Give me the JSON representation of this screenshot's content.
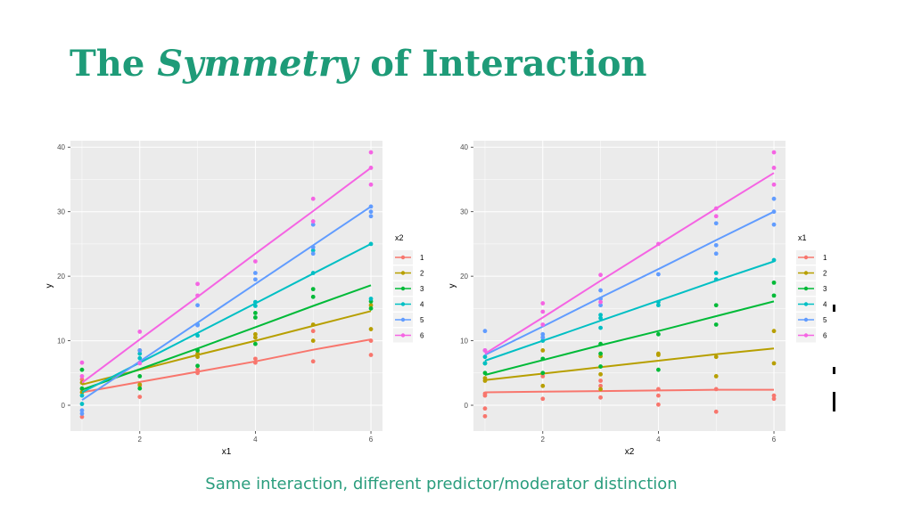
{
  "slide": {
    "title_part1": "The",
    "title_emph": "Symmetry",
    "title_part2": "of Interaction",
    "caption": "Same interaction, different predictor/moderator distinction"
  },
  "colors": {
    "title": "#1e9b78",
    "caption": "#2a9d7d",
    "panel_bg": "#ebebeb",
    "grid": "#ffffff",
    "series": [
      "#f8766d",
      "#b79f00",
      "#00ba38",
      "#00bfc4",
      "#619cff",
      "#f564e3"
    ]
  },
  "chart_data": [
    {
      "type": "scatter",
      "xlabel": "x1",
      "ylabel": "y",
      "xlim": [
        0.8,
        6.2
      ],
      "ylim": [
        -4,
        41
      ],
      "xticks": [
        2,
        4,
        6
      ],
      "yticks": [
        0,
        10,
        20,
        30,
        40
      ],
      "grid": true,
      "legend_title": "x2",
      "legend_position": "right",
      "x": [
        1,
        2,
        3,
        4,
        5,
        6
      ],
      "series": [
        {
          "name": "1",
          "fit": [
            2.0,
            3.6,
            5.2,
            6.8,
            8.6,
            10.2
          ],
          "points": [
            [
              1,
              2.5
            ],
            [
              1,
              -1.8
            ],
            [
              1,
              4.0
            ],
            [
              2,
              1.3
            ],
            [
              2,
              3.0
            ],
            [
              3,
              5.0
            ],
            [
              3,
              5.5
            ],
            [
              4,
              7.2
            ],
            [
              4,
              6.6
            ],
            [
              5,
              11.5
            ],
            [
              5,
              6.8
            ],
            [
              6,
              10.0
            ],
            [
              6,
              7.8
            ]
          ]
        },
        {
          "name": "2",
          "fit": [
            3.2,
            5.5,
            7.8,
            10.0,
            12.3,
            14.6
          ],
          "points": [
            [
              1,
              3.5
            ],
            [
              1,
              2.0
            ],
            [
              2,
              8.5
            ],
            [
              2,
              3.2
            ],
            [
              3,
              7.5
            ],
            [
              3,
              8.0
            ],
            [
              4,
              10.5
            ],
            [
              4,
              11.0
            ],
            [
              5,
              12.5
            ],
            [
              5,
              10.0
            ],
            [
              6,
              15.5
            ],
            [
              6,
              11.8
            ]
          ]
        },
        {
          "name": "3",
          "fit": [
            2.4,
            5.6,
            8.8,
            12.1,
            15.4,
            18.6
          ],
          "points": [
            [
              1,
              5.5
            ],
            [
              1,
              2.6
            ],
            [
              2,
              4.5
            ],
            [
              2,
              2.6
            ],
            [
              3,
              6.1
            ],
            [
              3,
              8.5
            ],
            [
              4,
              13.6
            ],
            [
              4,
              14.3
            ],
            [
              4,
              9.5
            ],
            [
              5,
              16.8
            ],
            [
              5,
              18.0
            ],
            [
              6,
              16.1
            ],
            [
              6,
              15.0
            ]
          ]
        },
        {
          "name": "4",
          "fit": [
            2.0,
            6.6,
            11.2,
            15.8,
            20.4,
            25.0
          ],
          "points": [
            [
              1,
              0.2
            ],
            [
              1,
              1.5
            ],
            [
              2,
              8.0
            ],
            [
              2,
              7.3
            ],
            [
              3,
              10.8
            ],
            [
              3,
              12.5
            ],
            [
              4,
              15.4
            ],
            [
              4,
              16.0
            ],
            [
              5,
              24.0
            ],
            [
              5,
              20.5
            ],
            [
              6,
              25.0
            ],
            [
              6,
              16.5
            ]
          ]
        },
        {
          "name": "5",
          "fit": [
            0.8,
            6.8,
            12.8,
            18.8,
            24.8,
            30.8
          ],
          "points": [
            [
              1,
              -0.8
            ],
            [
              1,
              -1.3
            ],
            [
              2,
              6.6
            ],
            [
              2,
              8.5
            ],
            [
              3,
              15.5
            ],
            [
              3,
              12.4
            ],
            [
              4,
              19.5
            ],
            [
              4,
              20.5
            ],
            [
              5,
              28.0
            ],
            [
              5,
              24.5
            ],
            [
              5,
              23.5
            ],
            [
              6,
              29.3
            ],
            [
              6,
              30.8
            ],
            [
              6,
              30.0
            ]
          ]
        },
        {
          "name": "6",
          "fit": [
            3.5,
            10.2,
            16.8,
            23.5,
            30.1,
            36.8
          ],
          "points": [
            [
              1,
              6.6
            ],
            [
              1,
              4.5
            ],
            [
              2,
              11.4
            ],
            [
              2,
              6.5
            ],
            [
              3,
              18.8
            ],
            [
              3,
              17.0
            ],
            [
              4,
              22.3
            ],
            [
              5,
              32.0
            ],
            [
              5,
              28.5
            ],
            [
              6,
              39.2
            ],
            [
              6,
              36.8
            ],
            [
              6,
              34.2
            ]
          ]
        }
      ]
    },
    {
      "type": "scatter",
      "xlabel": "x2",
      "ylabel": "y",
      "xlim": [
        0.8,
        6.2
      ],
      "ylim": [
        -4,
        41
      ],
      "xticks": [
        2,
        4,
        6
      ],
      "yticks": [
        0,
        10,
        20,
        30,
        40
      ],
      "grid": true,
      "legend_title": "x1",
      "legend_position": "right",
      "x": [
        1,
        2,
        3,
        4,
        5,
        6
      ],
      "series": [
        {
          "name": "1",
          "fit": [
            2.0,
            2.1,
            2.2,
            2.3,
            2.4,
            2.4
          ],
          "points": [
            [
              1,
              -1.7
            ],
            [
              1,
              -0.5
            ],
            [
              1,
              1.5
            ],
            [
              1,
              1.8
            ],
            [
              2,
              1.0
            ],
            [
              2,
              4.5
            ],
            [
              3,
              1.2
            ],
            [
              3,
              3.0
            ],
            [
              3,
              3.8
            ],
            [
              4,
              0.1
            ],
            [
              4,
              2.5
            ],
            [
              4,
              1.5
            ],
            [
              5,
              -1.0
            ],
            [
              5,
              2.5
            ],
            [
              6,
              1.0
            ],
            [
              6,
              1.5
            ]
          ]
        },
        {
          "name": "2",
          "fit": [
            3.9,
            4.9,
            5.9,
            6.9,
            7.9,
            8.8
          ],
          "points": [
            [
              1,
              3.8
            ],
            [
              1,
              4.2
            ],
            [
              2,
              3.0
            ],
            [
              2,
              8.5
            ],
            [
              3,
              4.8
            ],
            [
              3,
              2.5
            ],
            [
              3,
              7.6
            ],
            [
              4,
              8.0
            ],
            [
              4,
              7.8
            ],
            [
              5,
              7.5
            ],
            [
              5,
              4.5
            ],
            [
              6,
              11.5
            ],
            [
              6,
              6.5
            ]
          ]
        },
        {
          "name": "3",
          "fit": [
            4.7,
            7.0,
            9.3,
            11.5,
            13.8,
            16.1
          ],
          "points": [
            [
              1,
              6.5
            ],
            [
              1,
              5.0
            ],
            [
              2,
              7.2
            ],
            [
              2,
              5.0
            ],
            [
              3,
              8.0
            ],
            [
              3,
              9.5
            ],
            [
              3,
              6.0
            ],
            [
              4,
              11.0
            ],
            [
              4,
              5.5
            ],
            [
              5,
              15.5
            ],
            [
              5,
              12.5
            ],
            [
              6,
              19.0
            ],
            [
              6,
              17.0
            ]
          ]
        },
        {
          "name": "4",
          "fit": [
            6.9,
            10.0,
            13.1,
            16.2,
            19.3,
            22.3
          ],
          "points": [
            [
              1,
              6.5
            ],
            [
              1,
              7.5
            ],
            [
              2,
              10.5
            ],
            [
              2,
              10.0
            ],
            [
              3,
              14.0
            ],
            [
              3,
              13.5
            ],
            [
              3,
              12.0
            ],
            [
              4,
              16.0
            ],
            [
              4,
              15.5
            ],
            [
              5,
              20.5
            ],
            [
              5,
              19.5
            ],
            [
              6,
              22.5
            ]
          ]
        },
        {
          "name": "5",
          "fit": [
            7.8,
            12.2,
            16.7,
            21.1,
            25.6,
            30.0
          ],
          "points": [
            [
              1,
              11.5
            ],
            [
              1,
              8.5
            ],
            [
              2,
              11.0
            ],
            [
              2,
              10.5
            ],
            [
              3,
              17.8
            ],
            [
              3,
              16.5
            ],
            [
              3,
              15.5
            ],
            [
              4,
              20.3
            ],
            [
              5,
              24.8
            ],
            [
              5,
              23.5
            ],
            [
              5,
              28.2
            ],
            [
              6,
              32.0
            ],
            [
              6,
              28.0
            ],
            [
              6,
              30.0
            ]
          ]
        },
        {
          "name": "6",
          "fit": [
            8.0,
            13.6,
            19.3,
            24.9,
            30.5,
            36.0
          ],
          "points": [
            [
              1,
              8.5
            ],
            [
              2,
              15.8
            ],
            [
              2,
              14.5
            ],
            [
              2,
              12.5
            ],
            [
              3,
              20.2
            ],
            [
              3,
              16.0
            ],
            [
              4,
              25.0
            ],
            [
              5,
              30.5
            ],
            [
              5,
              29.3
            ],
            [
              6,
              39.2
            ],
            [
              6,
              36.8
            ],
            [
              6,
              34.2
            ]
          ]
        }
      ]
    }
  ]
}
